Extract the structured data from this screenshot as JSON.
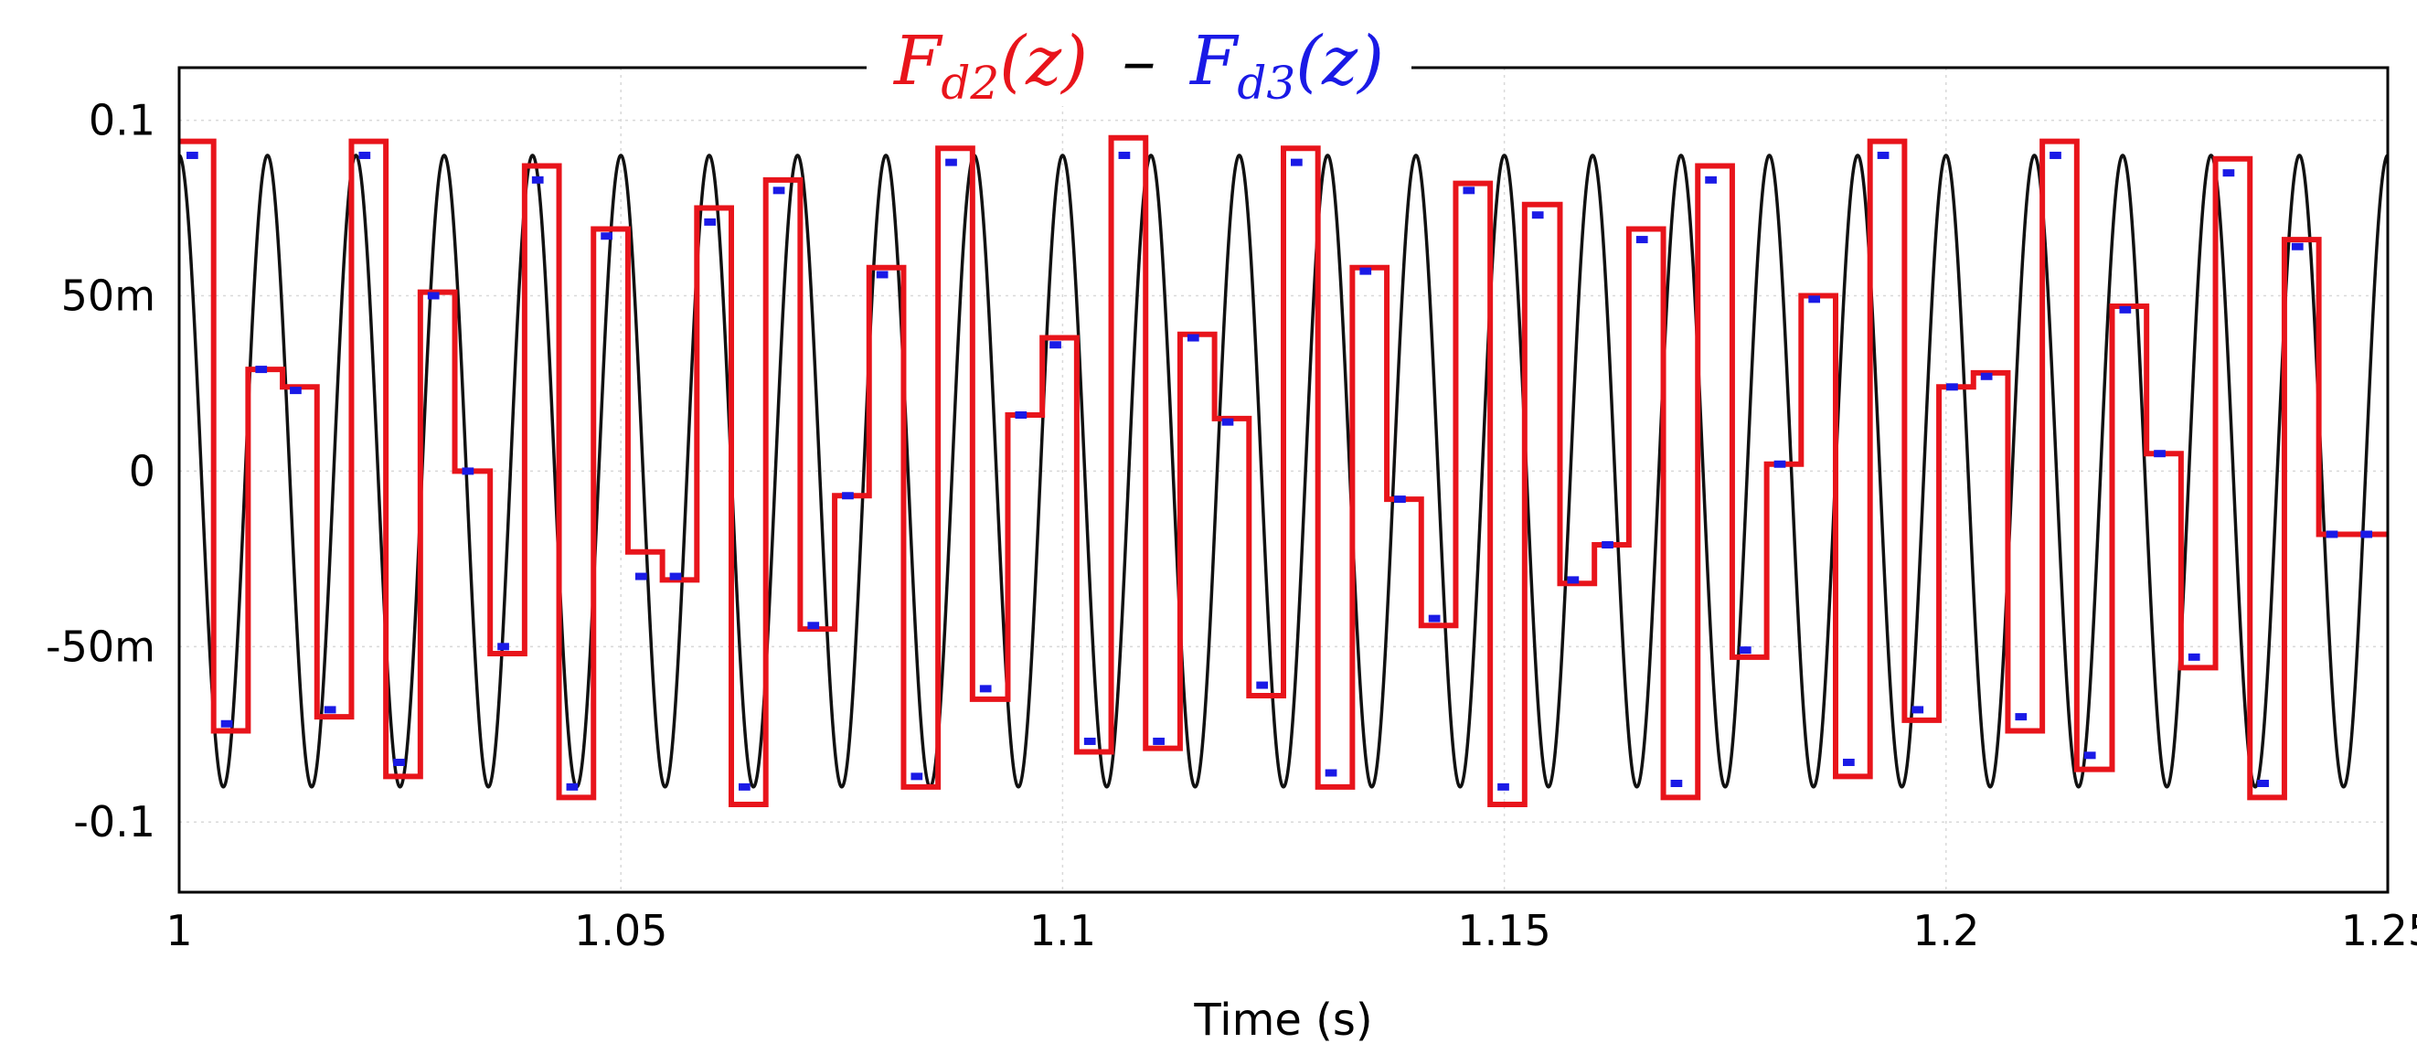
{
  "chart_data": {
    "type": "line",
    "title": "",
    "xlabel": "Time (s)",
    "ylabel": "",
    "xlim": [
      1.0,
      1.25
    ],
    "ylim": [
      -0.12,
      0.115
    ],
    "x_ticks": [
      1.0,
      1.05,
      1.1,
      1.15,
      1.2,
      1.25
    ],
    "x_tick_labels": [
      "1",
      "1.05",
      "1.1",
      "1.15",
      "1.2",
      "1.25"
    ],
    "y_ticks": [
      0.1,
      0.05,
      0.0,
      -0.05,
      -0.1
    ],
    "y_tick_labels": [
      "0.1",
      "50m",
      "0",
      "-50m",
      "-0.1"
    ],
    "grid": true,
    "legend": {
      "placement": "top-center",
      "entries": [
        {
          "label": "F",
          "subscript": "d2",
          "arg": "(z)",
          "color": "#e8141b"
        },
        {
          "label": "F",
          "subscript": "d3",
          "arg": "(z)",
          "color": "#1a1ae6"
        }
      ],
      "separator": "–"
    },
    "series": [
      {
        "name": "signal",
        "kind": "sinusoid",
        "color": "#111111",
        "amplitude": 0.09,
        "frequency_hz": 100,
        "phase_rad": 0
      },
      {
        "name": "F_d2(z)",
        "kind": "step",
        "color": "#e8141b",
        "x": [
          1.0,
          1.0039,
          1.0078,
          1.0117,
          1.0156,
          1.0195,
          1.0234,
          1.0273,
          1.0312,
          1.0352,
          1.0391,
          1.043,
          1.0469,
          1.0508,
          1.0547,
          1.0586,
          1.0625,
          1.0664,
          1.0703,
          1.0742,
          1.0781,
          1.082,
          1.0859,
          1.0898,
          1.0938,
          1.0977,
          1.1016,
          1.1055,
          1.1094,
          1.1133,
          1.1172,
          1.1211,
          1.125,
          1.1289,
          1.1328,
          1.1367,
          1.1406,
          1.1445,
          1.1484,
          1.1523,
          1.1563,
          1.1602,
          1.1641,
          1.168,
          1.1719,
          1.1758,
          1.1797,
          1.1836,
          1.1875,
          1.1914,
          1.1953,
          1.1992,
          1.2031,
          1.207,
          1.2109,
          1.2148,
          1.2188,
          1.2227,
          1.2266,
          1.2305,
          1.2344,
          1.2383,
          1.2422,
          1.2461,
          1.25
        ],
        "values": [
          0.094,
          -0.074,
          0.029,
          0.024,
          -0.07,
          0.094,
          -0.087,
          0.051,
          0.0,
          -0.052,
          0.087,
          -0.093,
          0.069,
          -0.023,
          -0.031,
          0.075,
          -0.095,
          0.083,
          -0.045,
          -0.007,
          0.058,
          -0.09,
          0.092,
          -0.065,
          0.016,
          0.038,
          -0.08,
          0.095,
          -0.079,
          0.039,
          0.015,
          -0.064,
          0.092,
          -0.09,
          0.058,
          -0.008,
          -0.044,
          0.082,
          -0.095,
          0.076,
          -0.032,
          -0.021,
          0.069,
          -0.093,
          0.087,
          -0.053,
          0.002,
          0.05,
          -0.087,
          0.094,
          -0.071,
          0.024,
          0.028,
          -0.074,
          0.094,
          -0.085,
          0.047,
          0.005,
          -0.056,
          0.089,
          -0.093,
          0.066,
          -0.018,
          -0.018,
          -0.018
        ]
      },
      {
        "name": "F_d3(z)",
        "kind": "step-markers",
        "color": "#1a1ae6",
        "x": [
          1.0,
          1.0039,
          1.0078,
          1.0117,
          1.0156,
          1.0195,
          1.0234,
          1.0273,
          1.0312,
          1.0352,
          1.0391,
          1.043,
          1.0469,
          1.0508,
          1.0547,
          1.0586,
          1.0625,
          1.0664,
          1.0703,
          1.0742,
          1.0781,
          1.082,
          1.0859,
          1.0898,
          1.0938,
          1.0977,
          1.1016,
          1.1055,
          1.1094,
          1.1133,
          1.1172,
          1.1211,
          1.125,
          1.1289,
          1.1328,
          1.1367,
          1.1406,
          1.1445,
          1.1484,
          1.1523,
          1.1563,
          1.1602,
          1.1641,
          1.168,
          1.1719,
          1.1758,
          1.1797,
          1.1836,
          1.1875,
          1.1914,
          1.1953,
          1.1992,
          1.2031,
          1.207,
          1.2109,
          1.2148,
          1.2188,
          1.2227,
          1.2266,
          1.2305,
          1.2344,
          1.2383,
          1.2422,
          1.2461
        ],
        "values": [
          0.09,
          -0.072,
          0.029,
          0.023,
          -0.068,
          0.09,
          -0.083,
          0.05,
          0.0,
          -0.05,
          0.083,
          -0.09,
          0.067,
          -0.03,
          -0.03,
          0.071,
          -0.09,
          0.08,
          -0.044,
          -0.007,
          0.056,
          -0.087,
          0.088,
          -0.062,
          0.016,
          0.036,
          -0.077,
          0.09,
          -0.077,
          0.038,
          0.014,
          -0.061,
          0.088,
          -0.086,
          0.057,
          -0.008,
          -0.042,
          0.08,
          -0.09,
          0.073,
          -0.031,
          -0.021,
          0.066,
          -0.089,
          0.083,
          -0.051,
          0.002,
          0.049,
          -0.083,
          0.09,
          -0.068,
          0.024,
          0.027,
          -0.07,
          0.09,
          -0.081,
          0.046,
          0.005,
          -0.053,
          0.085,
          -0.089,
          0.064,
          -0.018,
          -0.018
        ]
      }
    ]
  }
}
